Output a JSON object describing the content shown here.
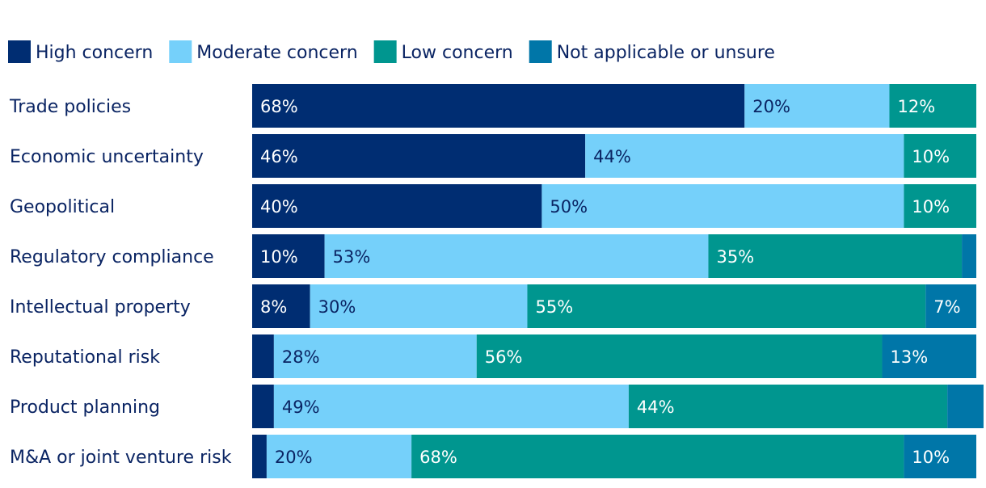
{
  "chart_data": {
    "type": "bar",
    "orientation": "horizontal",
    "stacked": true,
    "title": "",
    "xlabel": "",
    "ylabel": "",
    "xlim": [
      0,
      100
    ],
    "legend_position": "top",
    "categories": [
      "Trade policies",
      "Economic uncertainty",
      "Geopolitical",
      "Regulatory compliance",
      "Intellectual property",
      "Reputational risk",
      "Product planning",
      "M&A or joint venture risk"
    ],
    "series": [
      {
        "name": "High concern",
        "color": "#002d72",
        "text_color": "#ffffff",
        "values": [
          68,
          46,
          40,
          10,
          8,
          3,
          3,
          2
        ],
        "labels": [
          "68%",
          "46%",
          "40%",
          "10%",
          "8%",
          "",
          "",
          ""
        ]
      },
      {
        "name": "Moderate concern",
        "color": "#75d0fa",
        "text_color": "#0a2463",
        "values": [
          20,
          44,
          50,
          53,
          30,
          28,
          49,
          20
        ],
        "labels": [
          "20%",
          "44%",
          "50%",
          "53%",
          "30%",
          "28%",
          "49%",
          "20%"
        ]
      },
      {
        "name": "Low concern",
        "color": "#00968f",
        "text_color": "#ffffff",
        "values": [
          12,
          10,
          10,
          35,
          55,
          56,
          44,
          68
        ],
        "labels": [
          "12%",
          "10%",
          "10%",
          "35%",
          "55%",
          "56%",
          "44%",
          "68%"
        ]
      },
      {
        "name": "Not applicable or unsure",
        "color": "#0076a8",
        "text_color": "#ffffff",
        "values": [
          0,
          0,
          0,
          2,
          7,
          13,
          5,
          10
        ],
        "labels": [
          "",
          "",
          "",
          "",
          "7%",
          "13%",
          "",
          "10%"
        ]
      }
    ]
  }
}
